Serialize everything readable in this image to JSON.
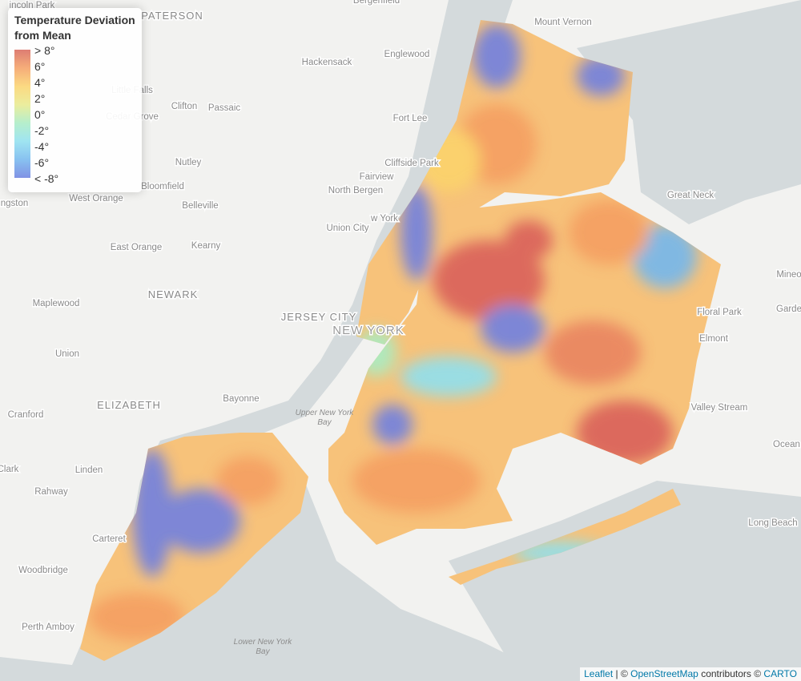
{
  "legend": {
    "title_lines": [
      "Temperature Deviation",
      "from Mean"
    ],
    "labels": [
      "> 8°",
      "6°",
      "4°",
      "2°",
      "0°",
      "-2°",
      "-4°",
      "-6°",
      "< -8°"
    ]
  },
  "places": [
    {
      "name": [
        "incoln Park"
      ],
      "kind": "place"
    },
    {
      "name": [
        "PATERSON"
      ],
      "kind": "city"
    },
    {
      "name": [
        "Bergenfield"
      ],
      "kind": "place"
    },
    {
      "name": [
        "Mount Vernon"
      ],
      "kind": "place"
    },
    {
      "name": [
        "Hackensack"
      ],
      "kind": "place"
    },
    {
      "name": [
        "Englewood"
      ],
      "kind": "place"
    },
    {
      "name": [
        "Little Falls"
      ],
      "kind": "place"
    },
    {
      "name": [
        "Cedar Grove"
      ],
      "kind": "place"
    },
    {
      "name": [
        "Clifton"
      ],
      "kind": "place"
    },
    {
      "name": [
        "Passaic"
      ],
      "kind": "place"
    },
    {
      "name": [
        "Fort Lee"
      ],
      "kind": "place"
    },
    {
      "name": [
        "Nutley"
      ],
      "kind": "place"
    },
    {
      "name": [
        "Cliffside Park"
      ],
      "kind": "place"
    },
    {
      "name": [
        "Fairview"
      ],
      "kind": "place"
    },
    {
      "name": [
        "Bloomfield"
      ],
      "kind": "place"
    },
    {
      "name": [
        "North Bergen"
      ],
      "kind": "place"
    },
    {
      "name": [
        "Great Neck"
      ],
      "kind": "place"
    },
    {
      "name": [
        "West Orange"
      ],
      "kind": "place"
    },
    {
      "name": [
        "ngston"
      ],
      "kind": "place"
    },
    {
      "name": [
        "Belleville"
      ],
      "kind": "place"
    },
    {
      "name": [
        "w York"
      ],
      "kind": "place"
    },
    {
      "name": [
        "Union City"
      ],
      "kind": "place"
    },
    {
      "name": [
        "East Orange"
      ],
      "kind": "place"
    },
    {
      "name": [
        "Kearny"
      ],
      "kind": "place"
    },
    {
      "name": [
        "Mineo"
      ],
      "kind": "place"
    },
    {
      "name": [
        "NEWARK"
      ],
      "kind": "city"
    },
    {
      "name": [
        "Maplewood"
      ],
      "kind": "place"
    },
    {
      "name": [
        "Floral Park"
      ],
      "kind": "place"
    },
    {
      "name": [
        "Garde"
      ],
      "kind": "place"
    },
    {
      "name": [
        "JERSEY CITY"
      ],
      "kind": "city"
    },
    {
      "name": [
        "NEW YORK"
      ],
      "kind": "big"
    },
    {
      "name": [
        "Elmont"
      ],
      "kind": "place"
    },
    {
      "name": [
        "Union"
      ],
      "kind": "place"
    },
    {
      "name": [
        "Bayonne"
      ],
      "kind": "place"
    },
    {
      "name": [
        "ELIZABETH"
      ],
      "kind": "city"
    },
    {
      "name": [
        "Valley Stream"
      ],
      "kind": "place"
    },
    {
      "name": [
        "Cranford"
      ],
      "kind": "place"
    },
    {
      "name": [
        "Upper New York",
        "Bay"
      ],
      "kind": "water"
    },
    {
      "name": [
        "Ocean"
      ],
      "kind": "place"
    },
    {
      "name": [
        "Clark"
      ],
      "kind": "place"
    },
    {
      "name": [
        "Linden"
      ],
      "kind": "place"
    },
    {
      "name": [
        "Rahway"
      ],
      "kind": "place"
    },
    {
      "name": [
        "Long Beach"
      ],
      "kind": "place"
    },
    {
      "name": [
        "Carteret"
      ],
      "kind": "place"
    },
    {
      "name": [
        "Woodbridge"
      ],
      "kind": "place"
    },
    {
      "name": [
        "Perth Amboy"
      ],
      "kind": "place"
    },
    {
      "name": [
        "Lower New York",
        "Bay"
      ],
      "kind": "water"
    }
  ],
  "attribution": {
    "leaflet": "Leaflet",
    "sep": "| ©",
    "osm": "OpenStreetMap",
    "contributors": "contributors ©",
    "carto": "CARTO"
  }
}
